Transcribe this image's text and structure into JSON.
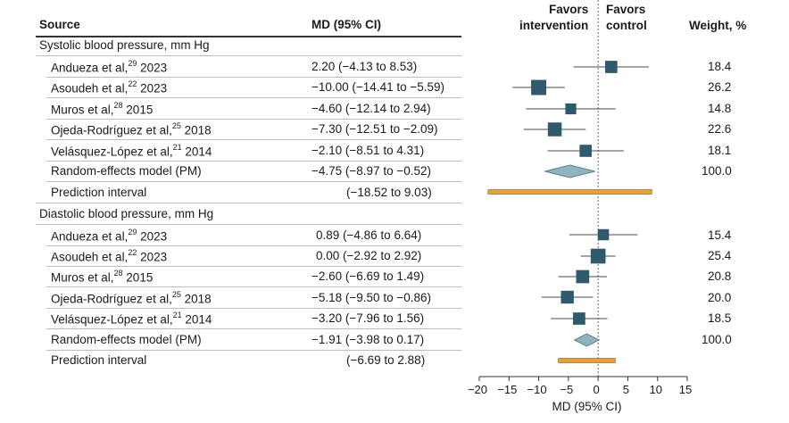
{
  "headers": {
    "source": "Source",
    "md": "MD (95% CI)",
    "favors_intervention_1": "Favors",
    "favors_intervention_2": "intervention",
    "favors_control_1": "Favors",
    "favors_control_2": "control",
    "weight": "Weight, %"
  },
  "sections": [
    {
      "title": "Systolic blood pressure, mm Hg",
      "rows": [
        {
          "author": "Andueza et al,",
          "ref": "29",
          "year": " 2023",
          "ci_text": "2.20 (−4.13 to 8.53)",
          "weight": "18.4"
        },
        {
          "author": "Asoudeh et al,",
          "ref": "22",
          "year": " 2023",
          "ci_text": "−10.00 (−14.41 to −5.59)",
          "weight": "26.2"
        },
        {
          "author": "Muros et al,",
          "ref": "28",
          "year": " 2015",
          "ci_text": "−4.60 (−12.14 to 2.94)",
          "weight": "14.8"
        },
        {
          "author": "Ojeda-Rodríguez et al,",
          "ref": "25",
          "year": " 2018",
          "ci_text": "−7.30 (−12.51 to −2.09)",
          "weight": "22.6"
        },
        {
          "author": "Velásquez-López et al,",
          "ref": "21",
          "year": " 2014",
          "ci_text": "−2.10 (−8.51 to 4.31)",
          "weight": "18.1"
        }
      ],
      "model": {
        "label": "Random-effects model (PM)",
        "ci_text": "−4.75 (−8.97 to −0.52)",
        "weight": "100.0"
      },
      "prediction": {
        "label": "Prediction interval",
        "ci_text": "(−18.52 to 9.03)"
      }
    },
    {
      "title": "Diastolic blood pressure, mm Hg",
      "rows": [
        {
          "author": "Andueza et al,",
          "ref": "29",
          "year": " 2023",
          "ci_text": "0.89 (−4.86 to 6.64)",
          "weight": "15.4"
        },
        {
          "author": "Asoudeh et al,",
          "ref": "22",
          "year": " 2023",
          "ci_text": "0.00 (−2.92 to 2.92)",
          "weight": "25.4"
        },
        {
          "author": "Muros et al,",
          "ref": "28",
          "year": " 2015",
          "ci_text": "−2.60 (−6.69 to 1.49)",
          "weight": "20.8"
        },
        {
          "author": "Ojeda-Rodríguez et al,",
          "ref": "25",
          "year": " 2018",
          "ci_text": "−5.18 (−9.50 to −0.86)",
          "weight": "20.0"
        },
        {
          "author": "Velásquez-López et al,",
          "ref": "21",
          "year": " 2014",
          "ci_text": "−3.20 (−7.96 to 1.56)",
          "weight": "18.5"
        }
      ],
      "model": {
        "label": "Random-effects model (PM)",
        "ci_text": "−1.91 (−3.98 to 0.17)",
        "weight": "100.0"
      },
      "prediction": {
        "label": "Prediction interval",
        "ci_text": "(−6.69 to 2.88)"
      }
    }
  ],
  "colors": {
    "square": "#2f5a6b",
    "diamond": "#8fb3bf",
    "diamond_stroke": "#5b7f8c",
    "prediction": "#e3a03e",
    "prediction_stroke": "#8a5a12",
    "ci_line": "#4a4a4a",
    "null_line": "#666666"
  },
  "chart_data": {
    "type": "forest",
    "xlabel": "MD (95% CI)",
    "xlim": [
      -20,
      15
    ],
    "xticks": [
      -20,
      -15,
      -10,
      -5,
      0,
      5,
      10,
      15
    ],
    "tick_labels": [
      "−20",
      "−15",
      "−10",
      "−5",
      "0",
      "5",
      "10",
      "15"
    ],
    "reference_line": 0,
    "series": [
      {
        "name": "Systolic blood pressure, mm Hg",
        "studies": [
          {
            "md": 2.2,
            "lo": -4.13,
            "hi": 8.53,
            "weight": 18.4
          },
          {
            "md": -10.0,
            "lo": -14.41,
            "hi": -5.59,
            "weight": 26.2
          },
          {
            "md": -4.6,
            "lo": -12.14,
            "hi": 2.94,
            "weight": 14.8
          },
          {
            "md": -7.3,
            "lo": -12.51,
            "hi": -2.09,
            "weight": 22.6
          },
          {
            "md": -2.1,
            "lo": -8.51,
            "hi": 4.31,
            "weight": 18.1
          }
        ],
        "pooled": {
          "md": -4.75,
          "lo": -8.97,
          "hi": -0.52
        },
        "prediction_interval": {
          "lo": -18.52,
          "hi": 9.03
        }
      },
      {
        "name": "Diastolic blood pressure, mm Hg",
        "studies": [
          {
            "md": 0.89,
            "lo": -4.86,
            "hi": 6.64,
            "weight": 15.4
          },
          {
            "md": 0.0,
            "lo": -2.92,
            "hi": 2.92,
            "weight": 25.4
          },
          {
            "md": -2.6,
            "lo": -6.69,
            "hi": 1.49,
            "weight": 20.8
          },
          {
            "md": -5.18,
            "lo": -9.5,
            "hi": -0.86,
            "weight": 20.0
          },
          {
            "md": -3.2,
            "lo": -7.96,
            "hi": 1.56,
            "weight": 18.5
          }
        ],
        "pooled": {
          "md": -1.91,
          "lo": -3.98,
          "hi": 0.17
        },
        "prediction_interval": {
          "lo": -6.69,
          "hi": 2.88
        }
      }
    ]
  }
}
